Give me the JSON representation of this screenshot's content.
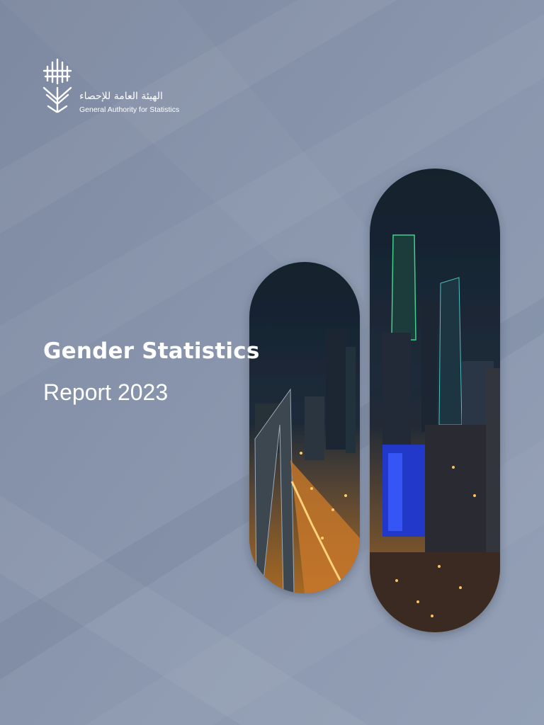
{
  "header": {
    "org_name_ar": "الهيئة العامة للإحصاء",
    "org_name_en": "General Authority for Statistics"
  },
  "title": "Gender Statistics",
  "subtitle": "Report 2023"
}
